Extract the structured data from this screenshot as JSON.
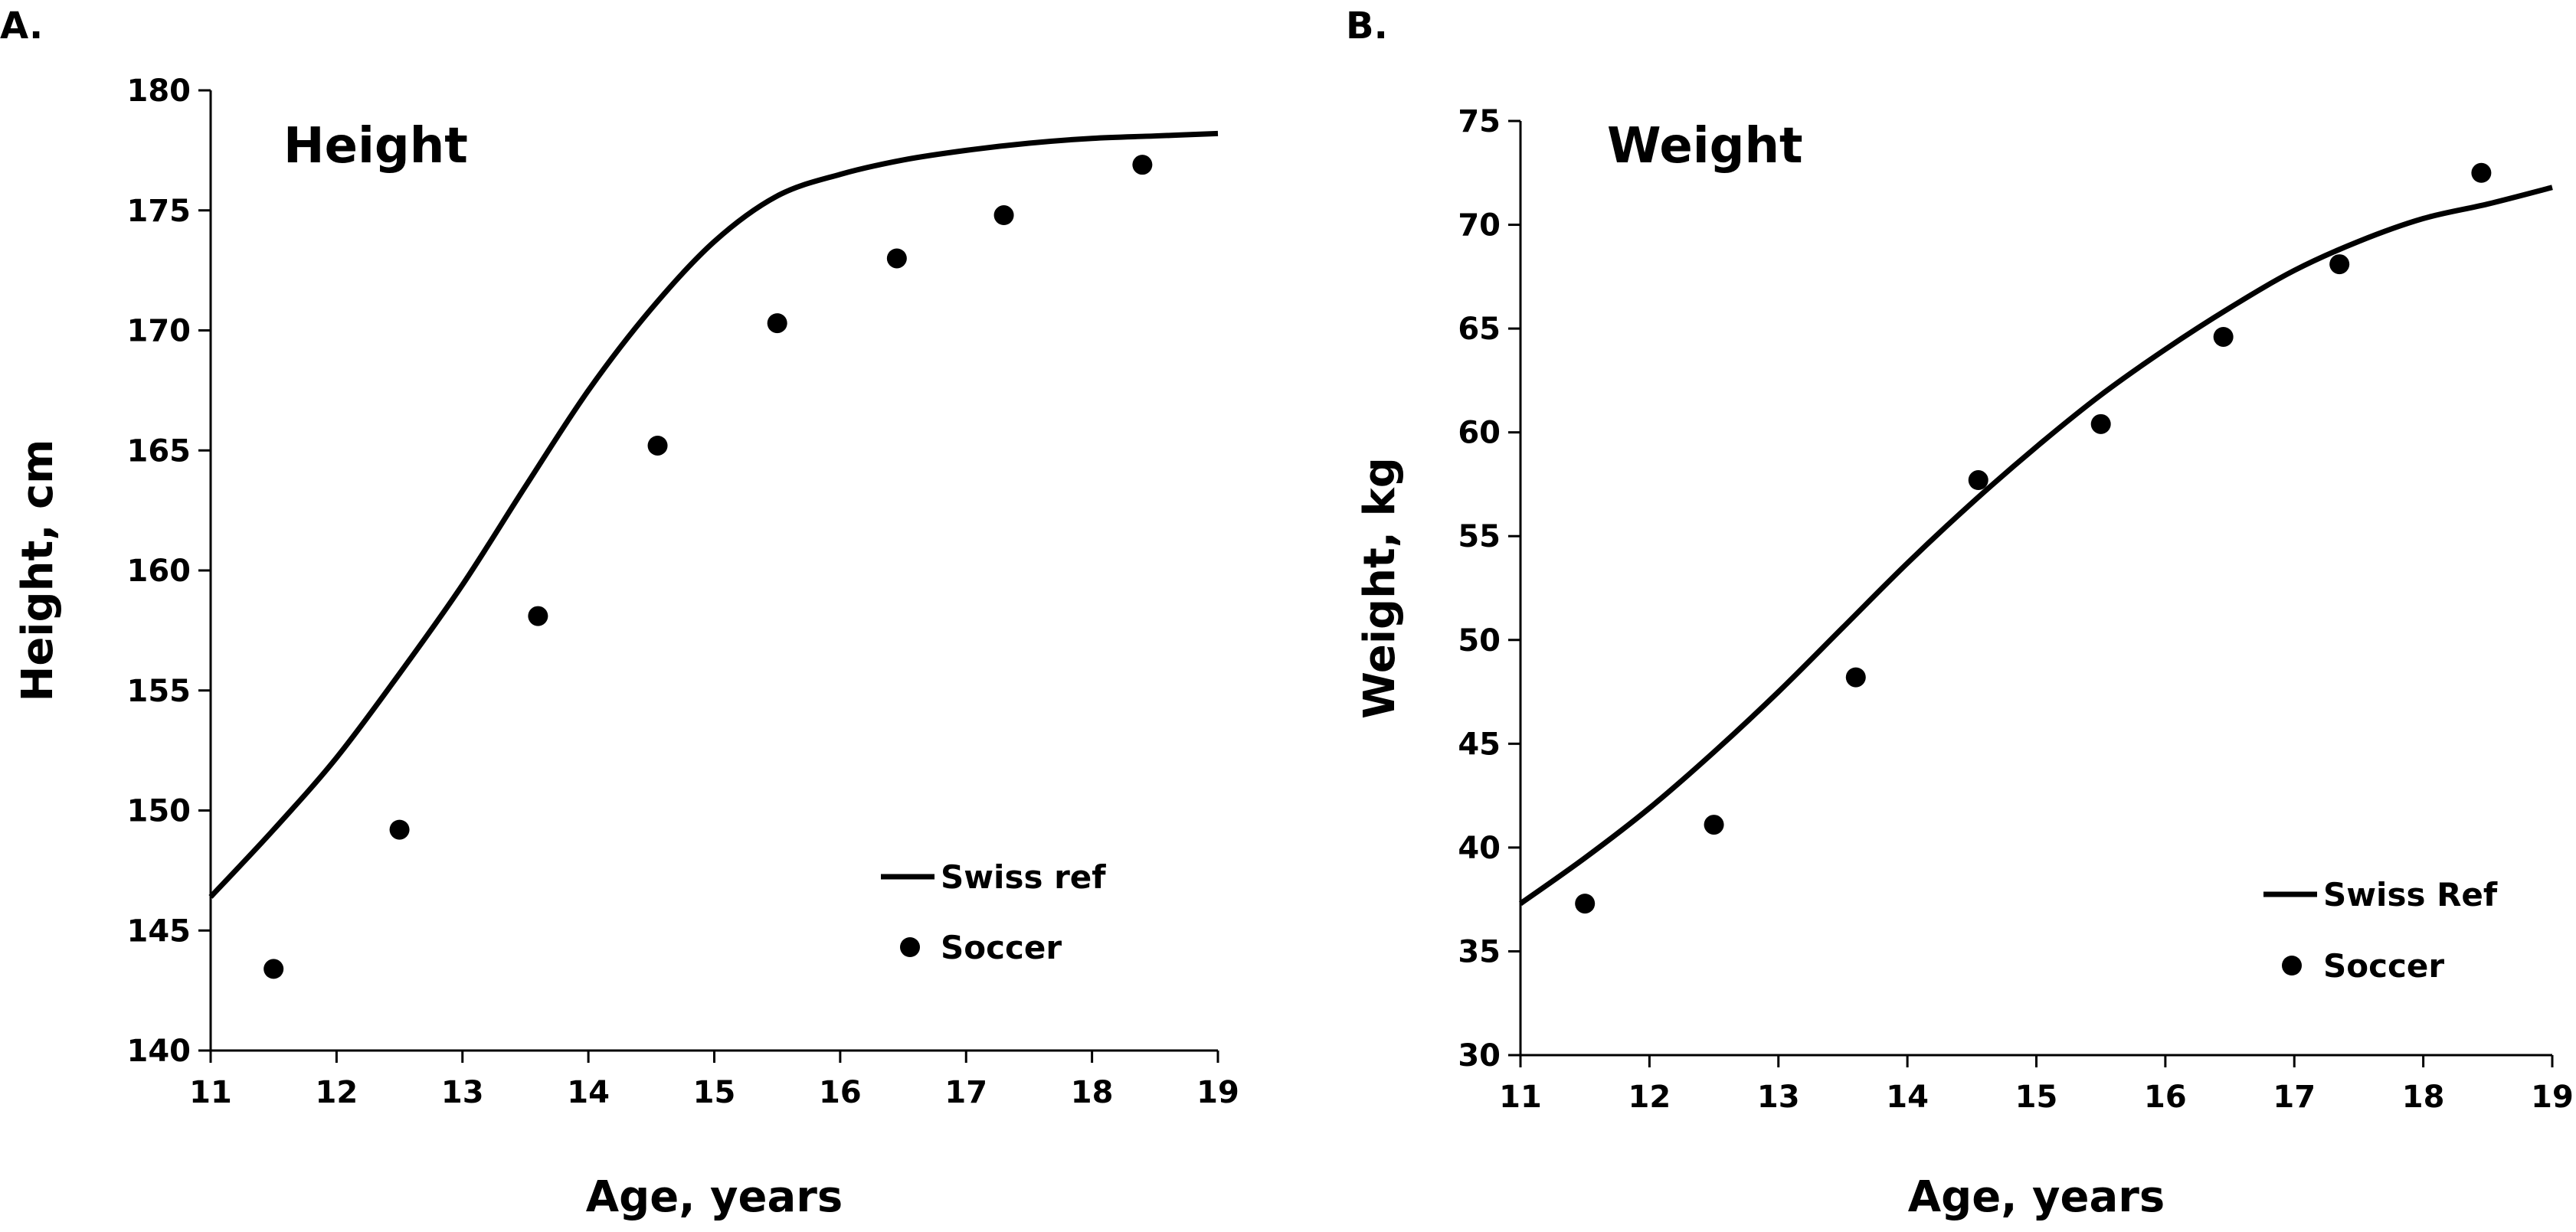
{
  "chart_data": [
    {
      "type": "line+scatter",
      "panel_label": "A.",
      "title": "Height",
      "xlabel": "Age, years",
      "ylabel": "Height, cm",
      "xlim": [
        11,
        19
      ],
      "ylim": [
        140,
        180
      ],
      "x_ticks": [
        11,
        12,
        13,
        14,
        15,
        16,
        17,
        18,
        19
      ],
      "y_ticks": [
        140,
        145,
        150,
        155,
        160,
        165,
        170,
        175,
        180
      ],
      "legend_position": "bottom-right",
      "series": [
        {
          "name": "Swiss ref",
          "kind": "line",
          "x": [
            11,
            11.5,
            12,
            12.5,
            13,
            13.5,
            14,
            14.5,
            15,
            15.5,
            16,
            16.5,
            17,
            17.5,
            18,
            18.5,
            19
          ],
          "y": [
            146.4,
            149.2,
            152.2,
            155.7,
            159.4,
            163.5,
            167.5,
            170.9,
            173.7,
            175.6,
            176.5,
            177.1,
            177.5,
            177.8,
            178.0,
            178.1,
            178.2
          ]
        },
        {
          "name": "Soccer",
          "kind": "scatter",
          "x": [
            11.5,
            12.5,
            13.6,
            14.55,
            15.5,
            16.45,
            17.3,
            18.4
          ],
          "y": [
            143.4,
            149.2,
            158.1,
            165.2,
            170.3,
            173.0,
            174.8,
            176.9
          ]
        }
      ]
    },
    {
      "type": "line+scatter",
      "panel_label": "B.",
      "title": "Weight",
      "xlabel": "Age, years",
      "ylabel": "Weight, kg",
      "xlim": [
        11,
        19
      ],
      "ylim": [
        30,
        75
      ],
      "x_ticks": [
        11,
        12,
        13,
        14,
        15,
        16,
        17,
        18,
        19
      ],
      "y_ticks": [
        30,
        35,
        40,
        45,
        50,
        55,
        60,
        65,
        70,
        75
      ],
      "legend_position": "bottom-right",
      "series": [
        {
          "name": "Swiss Ref",
          "kind": "line",
          "x": [
            11,
            11.5,
            12,
            12.5,
            13,
            13.5,
            14,
            14.5,
            15,
            15.5,
            16,
            16.5,
            17,
            17.5,
            18,
            18.5,
            19
          ],
          "y": [
            37.3,
            39.5,
            41.9,
            44.6,
            47.5,
            50.6,
            53.7,
            56.6,
            59.3,
            61.8,
            64.0,
            66.0,
            67.8,
            69.2,
            70.3,
            71.0,
            71.8
          ]
        },
        {
          "name": "Soccer",
          "kind": "scatter",
          "x": [
            11.5,
            12.5,
            13.6,
            14.55,
            15.5,
            16.45,
            17.35,
            18.45
          ],
          "y": [
            37.3,
            41.1,
            48.2,
            57.7,
            60.4,
            64.6,
            68.1,
            72.5
          ]
        }
      ]
    }
  ]
}
